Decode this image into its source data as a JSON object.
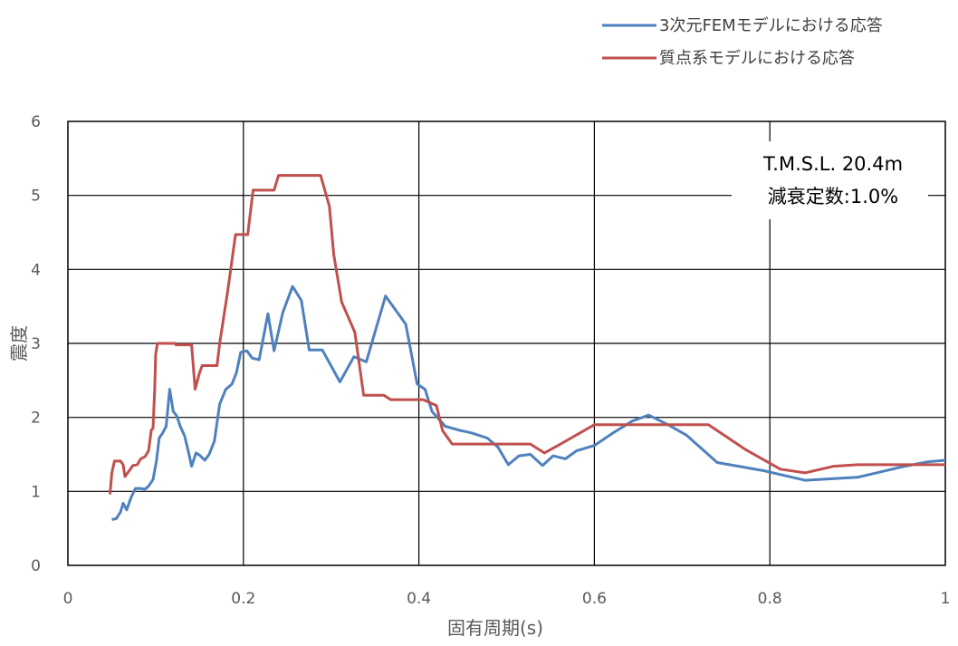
{
  "chart_data": {
    "type": "line",
    "title": "",
    "xlabel": "固有周期(s)",
    "ylabel": "震度",
    "xlim": [
      0,
      1
    ],
    "ylim": [
      0,
      6
    ],
    "x_ticks": [
      "0",
      "0.2",
      "0.4",
      "0.6",
      "0.8",
      "1"
    ],
    "y_ticks": [
      "0",
      "1",
      "2",
      "3",
      "4",
      "5",
      "6"
    ],
    "grid": true,
    "legend_position": "top-right",
    "annotation": {
      "line1": "T.M.S.L.   20.4m",
      "line2": "減衰定数:1.0%"
    },
    "series": [
      {
        "name": "3次元FEMモデルにおける応答",
        "color": "#4f81bd",
        "points": [
          [
            0.05,
            0.62
          ],
          [
            0.055,
            0.63
          ],
          [
            0.06,
            0.72
          ],
          [
            0.063,
            0.84
          ],
          [
            0.067,
            0.75
          ],
          [
            0.072,
            0.92
          ],
          [
            0.077,
            1.04
          ],
          [
            0.082,
            1.04
          ],
          [
            0.088,
            1.03
          ],
          [
            0.092,
            1.07
          ],
          [
            0.097,
            1.16
          ],
          [
            0.101,
            1.42
          ],
          [
            0.104,
            1.72
          ],
          [
            0.108,
            1.79
          ],
          [
            0.112,
            1.88
          ],
          [
            0.116,
            2.38
          ],
          [
            0.12,
            2.08
          ],
          [
            0.124,
            2.02
          ],
          [
            0.128,
            1.88
          ],
          [
            0.133,
            1.75
          ],
          [
            0.137,
            1.55
          ],
          [
            0.141,
            1.34
          ],
          [
            0.146,
            1.52
          ],
          [
            0.15,
            1.49
          ],
          [
            0.156,
            1.42
          ],
          [
            0.161,
            1.5
          ],
          [
            0.167,
            1.68
          ],
          [
            0.173,
            2.18
          ],
          [
            0.18,
            2.38
          ],
          [
            0.187,
            2.45
          ],
          [
            0.192,
            2.6
          ],
          [
            0.197,
            2.88
          ],
          [
            0.204,
            2.9
          ],
          [
            0.21,
            2.8
          ],
          [
            0.218,
            2.78
          ],
          [
            0.228,
            3.4
          ],
          [
            0.235,
            2.9
          ],
          [
            0.245,
            3.42
          ],
          [
            0.256,
            3.77
          ],
          [
            0.266,
            3.58
          ],
          [
            0.275,
            2.91
          ],
          [
            0.29,
            2.91
          ],
          [
            0.31,
            2.48
          ],
          [
            0.326,
            2.82
          ],
          [
            0.34,
            2.75
          ],
          [
            0.362,
            3.64
          ],
          [
            0.385,
            3.26
          ],
          [
            0.398,
            2.45
          ],
          [
            0.407,
            2.38
          ],
          [
            0.415,
            2.08
          ],
          [
            0.43,
            1.88
          ],
          [
            0.445,
            1.83
          ],
          [
            0.46,
            1.79
          ],
          [
            0.478,
            1.72
          ],
          [
            0.49,
            1.6
          ],
          [
            0.502,
            1.36
          ],
          [
            0.514,
            1.48
          ],
          [
            0.527,
            1.5
          ],
          [
            0.541,
            1.35
          ],
          [
            0.553,
            1.48
          ],
          [
            0.567,
            1.44
          ],
          [
            0.58,
            1.55
          ],
          [
            0.6,
            1.62
          ],
          [
            0.62,
            1.78
          ],
          [
            0.643,
            1.95
          ],
          [
            0.662,
            2.03
          ],
          [
            0.684,
            1.9
          ],
          [
            0.705,
            1.76
          ],
          [
            0.74,
            1.39
          ],
          [
            0.793,
            1.28
          ],
          [
            0.815,
            1.22
          ],
          [
            0.84,
            1.15
          ],
          [
            0.9,
            1.19
          ],
          [
            0.95,
            1.33
          ],
          [
            0.98,
            1.4
          ],
          [
            1.0,
            1.42
          ]
        ]
      },
      {
        "name": "質点系モデルにおける応答",
        "color": "#c0504d",
        "points": [
          [
            0.048,
            0.96
          ],
          [
            0.05,
            1.25
          ],
          [
            0.053,
            1.41
          ],
          [
            0.06,
            1.41
          ],
          [
            0.063,
            1.36
          ],
          [
            0.065,
            1.2
          ],
          [
            0.07,
            1.28
          ],
          [
            0.074,
            1.35
          ],
          [
            0.079,
            1.36
          ],
          [
            0.083,
            1.44
          ],
          [
            0.088,
            1.47
          ],
          [
            0.092,
            1.55
          ],
          [
            0.095,
            1.83
          ],
          [
            0.097,
            1.85
          ],
          [
            0.099,
            2.4
          ],
          [
            0.1,
            2.85
          ],
          [
            0.102,
            3.0
          ],
          [
            0.122,
            3.0
          ],
          [
            0.123,
            2.98
          ],
          [
            0.141,
            2.98
          ],
          [
            0.145,
            2.38
          ],
          [
            0.15,
            2.6
          ],
          [
            0.153,
            2.7
          ],
          [
            0.17,
            2.7
          ],
          [
            0.173,
            3.0
          ],
          [
            0.182,
            3.7
          ],
          [
            0.191,
            4.47
          ],
          [
            0.205,
            4.47
          ],
          [
            0.211,
            5.07
          ],
          [
            0.235,
            5.07
          ],
          [
            0.24,
            5.27
          ],
          [
            0.288,
            5.27
          ],
          [
            0.298,
            4.85
          ],
          [
            0.303,
            4.2
          ],
          [
            0.312,
            3.56
          ],
          [
            0.327,
            3.15
          ],
          [
            0.337,
            2.3
          ],
          [
            0.36,
            2.3
          ],
          [
            0.368,
            2.24
          ],
          [
            0.405,
            2.24
          ],
          [
            0.42,
            2.16
          ],
          [
            0.427,
            1.82
          ],
          [
            0.438,
            1.64
          ],
          [
            0.527,
            1.64
          ],
          [
            0.543,
            1.52
          ],
          [
            0.56,
            1.63
          ],
          [
            0.6,
            1.9
          ],
          [
            0.73,
            1.9
          ],
          [
            0.773,
            1.56
          ],
          [
            0.812,
            1.3
          ],
          [
            0.84,
            1.25
          ],
          [
            0.873,
            1.34
          ],
          [
            0.9,
            1.36
          ],
          [
            1.0,
            1.36
          ]
        ]
      }
    ]
  }
}
